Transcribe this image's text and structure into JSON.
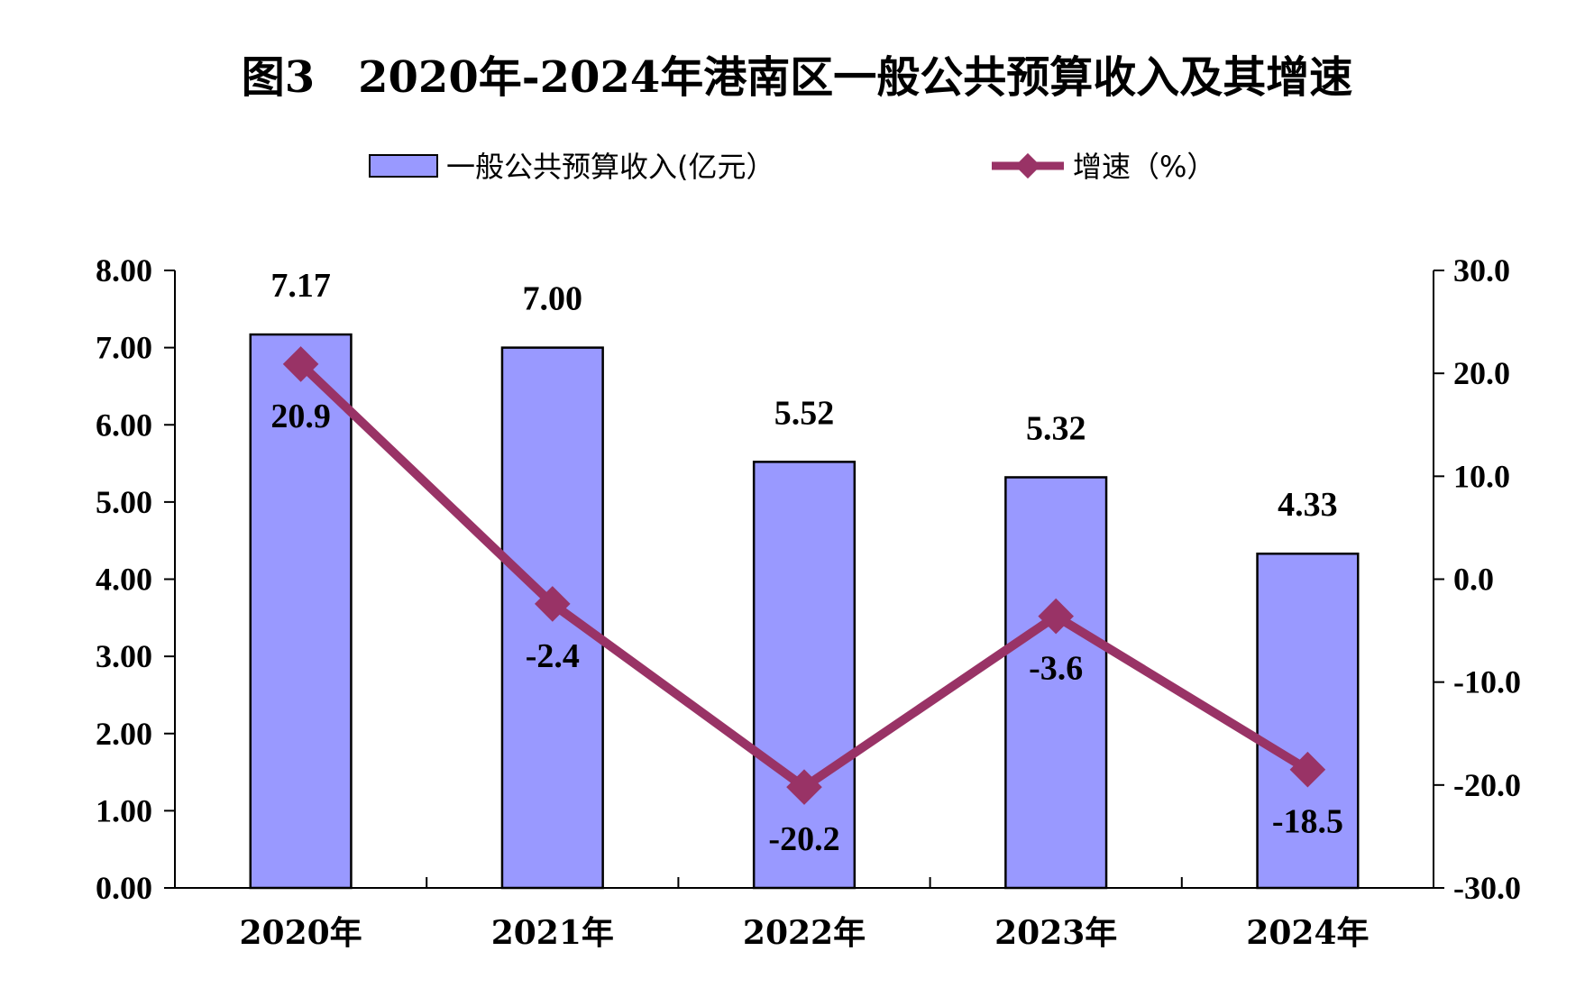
{
  "chart_data": {
    "type": "bar+line",
    "title": "图3　2020年-2024年港南区一般公共预算收入及其增速",
    "categories": [
      "2020年",
      "2021年",
      "2022年",
      "2023年",
      "2024年"
    ],
    "series": [
      {
        "name": "一般公共预算收入(亿元）",
        "type": "bar",
        "axis": "left",
        "values": [
          7.17,
          7.0,
          5.52,
          5.32,
          4.33
        ],
        "labels": [
          "7.17",
          "7.00",
          "5.52",
          "5.32",
          "4.33"
        ],
        "color": "#9999ff"
      },
      {
        "name": "增速（%）",
        "type": "line",
        "axis": "right",
        "values": [
          20.9,
          -2.4,
          -20.2,
          -3.6,
          -18.5
        ],
        "labels": [
          "20.9",
          "-2.4",
          "-20.2",
          "-3.6",
          "-18.5"
        ],
        "color": "#993366"
      }
    ],
    "left_axis": {
      "range": [
        0,
        8
      ],
      "ticks": [
        "0.00",
        "1.00",
        "2.00",
        "3.00",
        "4.00",
        "5.00",
        "6.00",
        "7.00",
        "8.00"
      ]
    },
    "right_axis": {
      "range": [
        -30,
        30
      ],
      "ticks": [
        "-30.0",
        "-20.0",
        "-10.0",
        "0.0",
        "10.0",
        "20.0",
        "30.0"
      ]
    },
    "legend_position": "top",
    "grid": false
  }
}
